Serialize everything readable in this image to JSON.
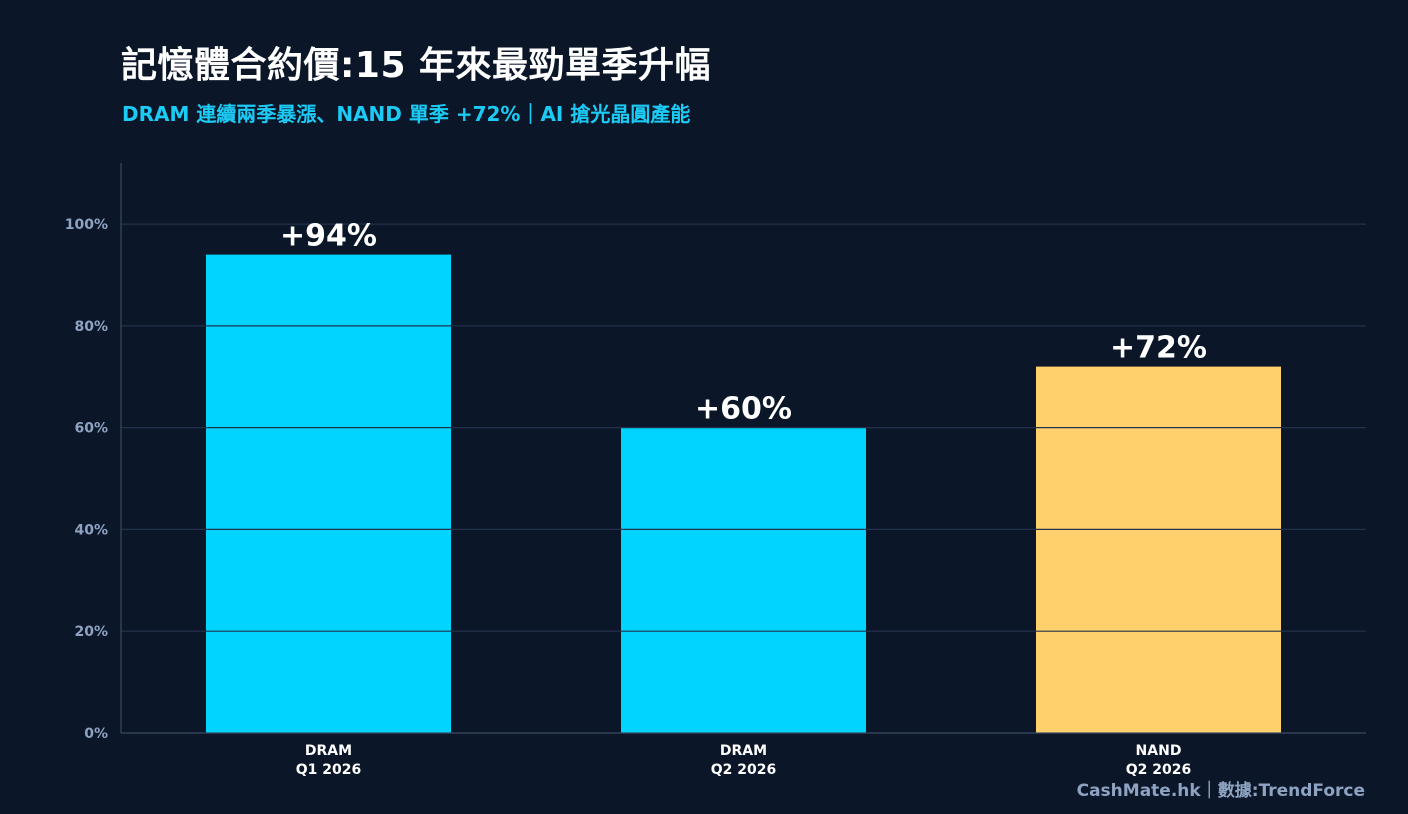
{
  "title": "記憶體合約價:15 年來最勁單季升幅",
  "subtitle": "DRAM 連續兩季暴漲、NAND 單季 +72%｜AI 搶光晶圓產能",
  "footer": "CashMate.hk｜數據:TrendForce",
  "colors": {
    "background": "#0b1628",
    "dram": "#00d4ff",
    "nand": "#ffd06b",
    "grid": "#22324b",
    "axis": "#3a4a64",
    "tick_label": "#8ea3c2",
    "value_label": "#ffffff",
    "category_label": "#ffffff"
  },
  "chart_data": {
    "type": "bar",
    "categories": [
      [
        "DRAM",
        "Q1 2026"
      ],
      [
        "DRAM",
        "Q2 2026"
      ],
      [
        "NAND",
        "Q2 2026"
      ]
    ],
    "values": [
      94,
      60,
      72
    ],
    "value_labels": [
      "+94%",
      "+60%",
      "+72%"
    ],
    "bar_colors": [
      "#00d4ff",
      "#00d4ff",
      "#ffd06b"
    ],
    "ylim": [
      0,
      112
    ],
    "yticks": [
      0,
      20,
      40,
      60,
      80,
      100
    ],
    "ytick_labels": [
      "0%",
      "20%",
      "40%",
      "60%",
      "80%",
      "100%"
    ],
    "grid": true,
    "xlabel": "",
    "ylabel": ""
  }
}
